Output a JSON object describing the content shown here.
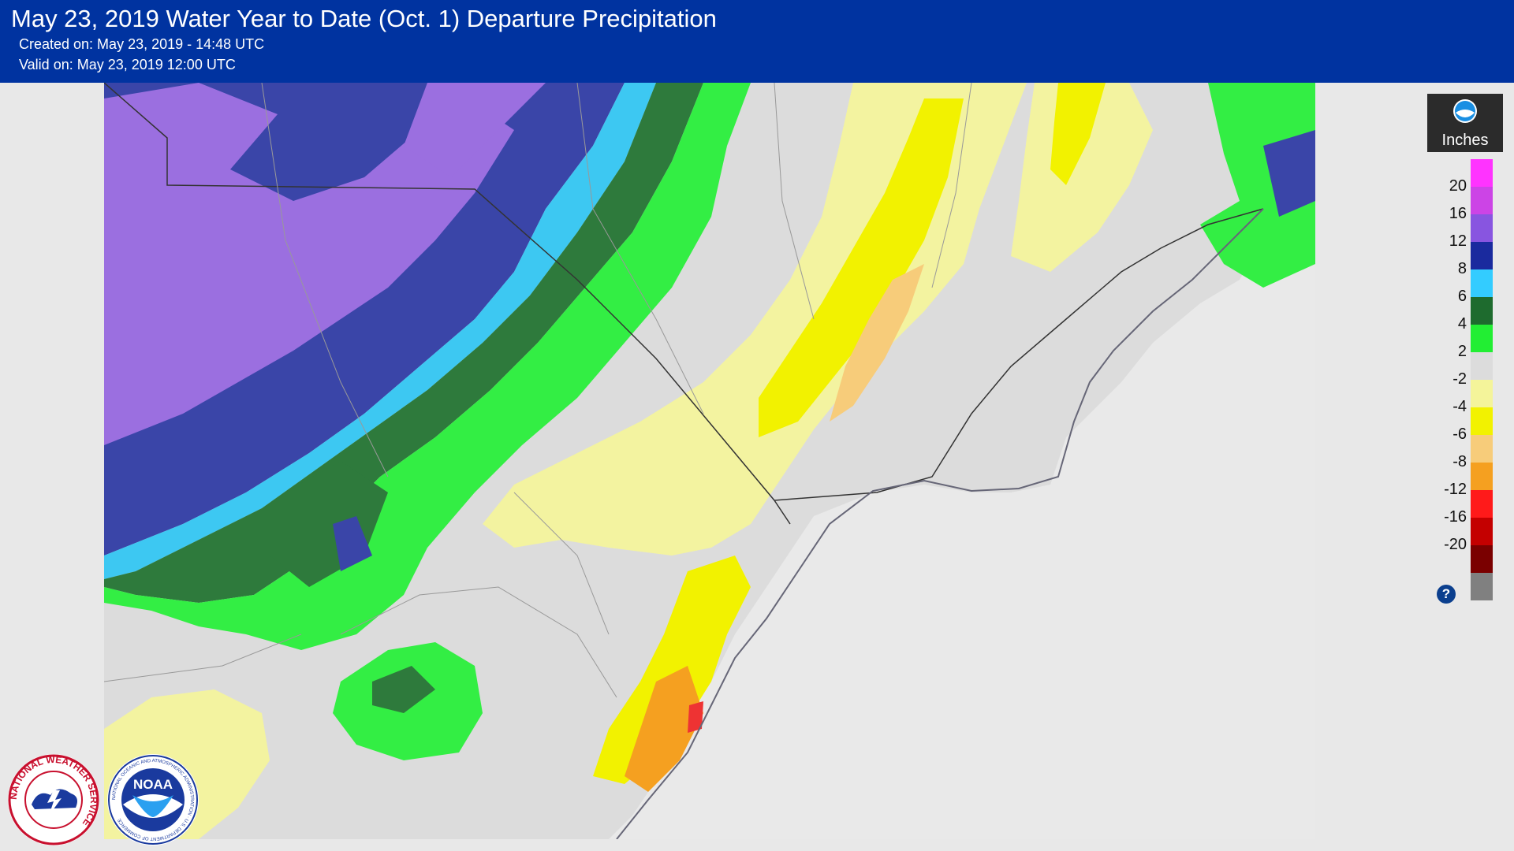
{
  "header": {
    "title": "May 23, 2019 Water Year to Date (Oct. 1) Departure Precipitation",
    "created": "Created on: May 23, 2019 - 14:48 UTC",
    "valid": "Valid on: May 23, 2019 12:00 UTC"
  },
  "legend": {
    "unit": "Inches",
    "tick_labels": [
      "20",
      "16",
      "12",
      "8",
      "6",
      "4",
      "2",
      "-2",
      "-4",
      "-6",
      "-8",
      "-12",
      "-16",
      "-20"
    ],
    "colors": {
      "above_20": "#ff33ff",
      "16_to_20": "#cc44e6",
      "12_to_16": "#8855e0",
      "8_to_12": "#1a2a9e",
      "6_to_8": "#33ccff",
      "4_to_6": "#1e6b2e",
      "2_to_4": "#22ee33",
      "neg2_to_2": "#dcdcdc",
      "neg4_to_neg2": "#f4f49a",
      "neg6_to_neg4": "#f2f200",
      "neg8_to_neg6": "#f7cc7a",
      "neg12_to_neg8": "#f5a020",
      "neg16_to_neg12": "#ff1a1a",
      "neg20_to_neg16": "#c40000",
      "below_neg20": "#7a0000",
      "missing": "#808080"
    },
    "help_icon": "help-icon"
  },
  "logos": {
    "nws": "National Weather Service logo",
    "noaa": "NOAA logo"
  },
  "logo_text": {
    "nws_ring": "NATIONAL WEATHER SERVICE",
    "noaa_word": "NOAA",
    "noaa_ring": "NATIONAL OCEANIC AND ATMOSPHERIC ADMINISTRATION · U.S. DEPARTMENT OF COMMERCE"
  }
}
